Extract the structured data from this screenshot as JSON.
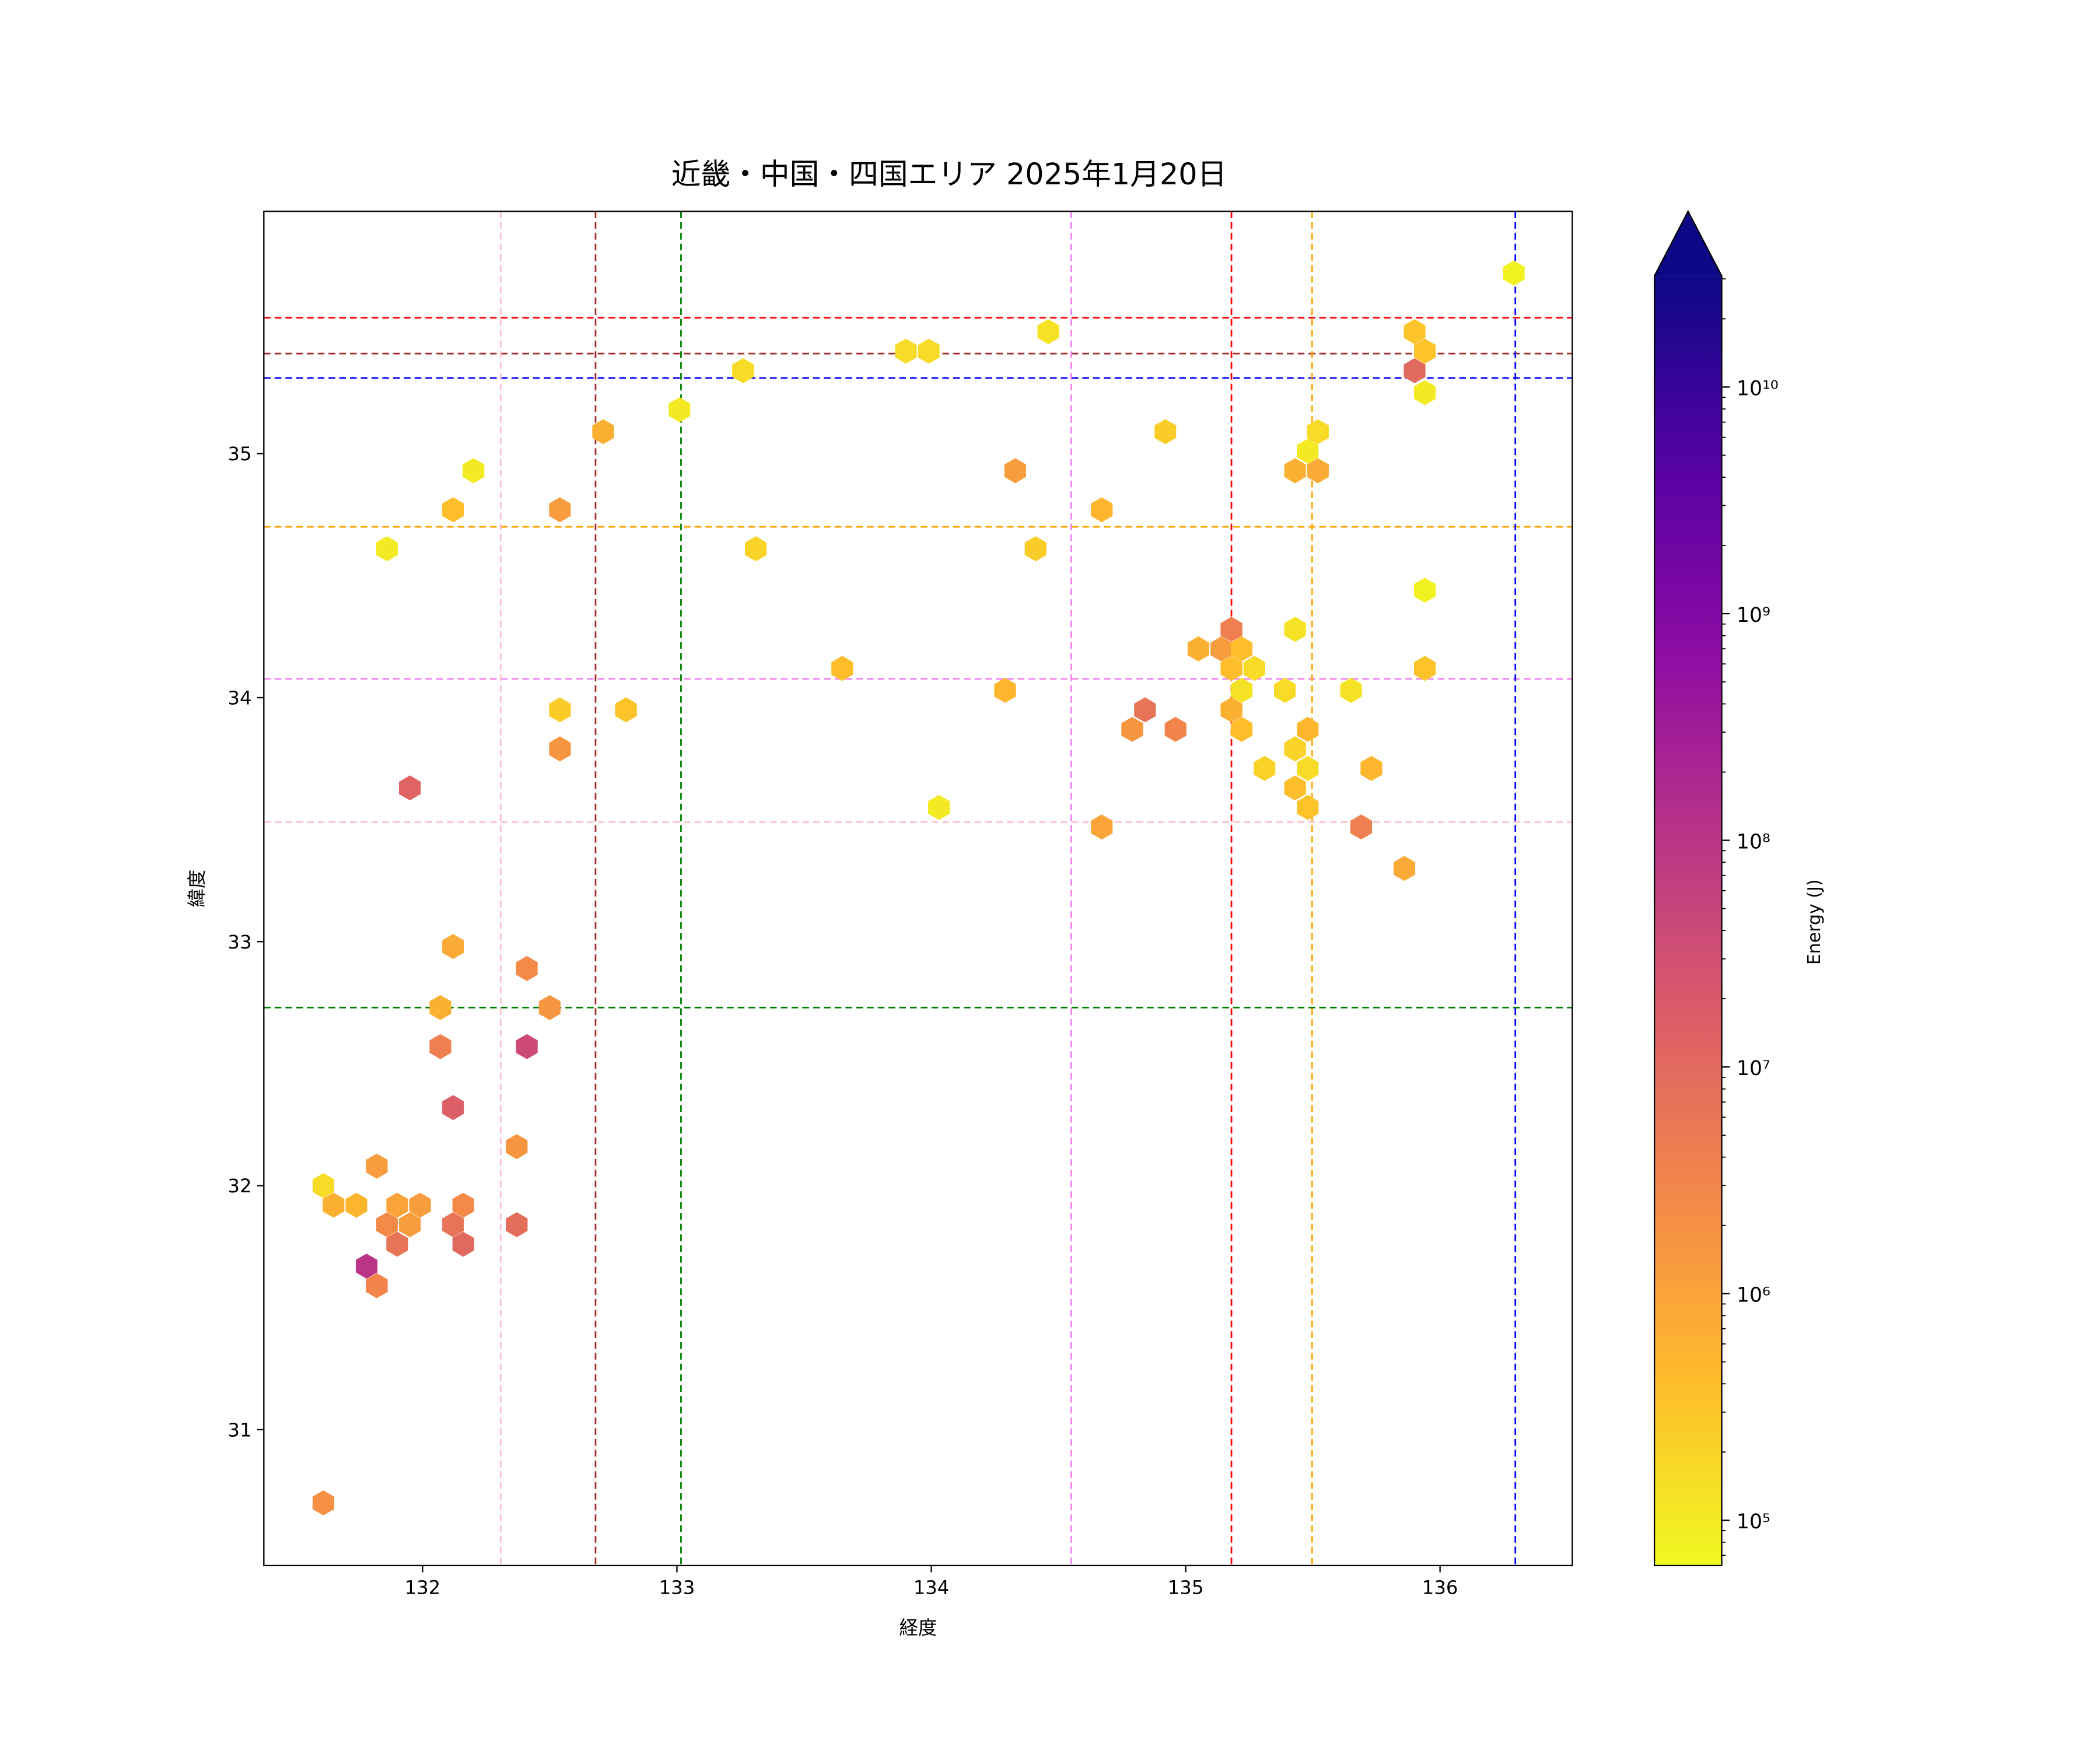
{
  "chart_data": {
    "type": "hexbin",
    "title": "近畿・中国・四国エリア 2025年1月20日",
    "xlabel": "経度",
    "ylabel": "緯度",
    "xlim": [
      131.376,
      136.52
    ],
    "ylim": [
      30.443,
      35.993
    ],
    "xticks": [
      132,
      133,
      134,
      135,
      136
    ],
    "xtick_labels": [
      "132",
      "133",
      "134",
      "135",
      "136"
    ],
    "yticks": [
      31,
      32,
      33,
      34,
      35
    ],
    "ytick_labels": [
      "31",
      "32",
      "33",
      "34",
      "35"
    ],
    "colorbar": {
      "label": "Energy (J)",
      "colormap": "plasma_r",
      "log10_range": [
        4.8,
        10.49
      ],
      "extend": "max",
      "ticks_log10": [
        5,
        6,
        7,
        8,
        9,
        10
      ],
      "tick_labels": [
        "10⁵",
        "10⁶",
        "10⁷",
        "10⁸",
        "10⁹",
        "10¹⁰"
      ]
    },
    "hlines": [
      {
        "value": 35.557,
        "color": "#ff0000"
      },
      {
        "value": 35.41,
        "color": "#a52a2a"
      },
      {
        "value": 35.31,
        "color": "#0000ff"
      },
      {
        "value": 34.7,
        "color": "#ffa500"
      },
      {
        "value": 34.077,
        "color": "#ee82ee"
      },
      {
        "value": 33.49,
        "color": "#ffc0cb"
      },
      {
        "value": 32.73,
        "color": "#008000"
      }
    ],
    "vlines": [
      {
        "value": 132.307,
        "color": "#ffc0cb"
      },
      {
        "value": 132.68,
        "color": "#a52a2a"
      },
      {
        "value": 133.016,
        "color": "#008000"
      },
      {
        "value": 134.55,
        "color": "#ee82ee"
      },
      {
        "value": 135.18,
        "color": "#ff0000"
      },
      {
        "value": 135.497,
        "color": "#ffa500"
      },
      {
        "value": 136.296,
        "color": "#0000ff"
      }
    ],
    "points_fields": [
      "lon",
      "lat",
      "log10_energy"
    ],
    "points": [
      [
        136.29,
        35.74,
        4.9
      ],
      [
        135.9,
        35.5,
        5.5
      ],
      [
        135.94,
        35.42,
        5.5
      ],
      [
        135.9,
        35.34,
        7.0
      ],
      [
        135.94,
        35.25,
        5.0
      ],
      [
        134.46,
        35.5,
        5.1
      ],
      [
        133.9,
        35.42,
        5.2
      ],
      [
        133.99,
        35.42,
        5.2
      ],
      [
        133.26,
        35.34,
        5.2
      ],
      [
        133.01,
        35.18,
        5.0
      ],
      [
        132.71,
        35.09,
        5.8
      ],
      [
        132.2,
        34.93,
        5.0
      ],
      [
        132.12,
        34.77,
        5.6
      ],
      [
        132.54,
        34.77,
        6.1
      ],
      [
        131.86,
        34.61,
        5.0
      ],
      [
        133.31,
        34.61,
        5.3
      ],
      [
        134.33,
        34.93,
        6.1
      ],
      [
        134.67,
        34.77,
        5.7
      ],
      [
        134.41,
        34.61,
        5.4
      ],
      [
        134.92,
        35.09,
        5.4
      ],
      [
        135.52,
        35.09,
        5.2
      ],
      [
        135.48,
        35.01,
        5.0
      ],
      [
        135.43,
        34.93,
        5.8
      ],
      [
        135.52,
        34.93,
        5.9
      ],
      [
        135.94,
        34.44,
        4.9
      ],
      [
        135.94,
        34.12,
        5.5
      ],
      [
        135.43,
        34.28,
        5.1
      ],
      [
        133.65,
        34.12,
        5.6
      ],
      [
        134.29,
        34.03,
        5.7
      ],
      [
        135.05,
        34.2,
        5.8
      ],
      [
        135.14,
        34.2,
        6.1
      ],
      [
        135.18,
        34.28,
        6.6
      ],
      [
        135.22,
        34.2,
        5.6
      ],
      [
        135.18,
        34.12,
        5.6
      ],
      [
        135.27,
        34.12,
        5.2
      ],
      [
        135.22,
        34.03,
        5.1
      ],
      [
        135.39,
        34.03,
        5.2
      ],
      [
        135.65,
        34.03,
        5.1
      ],
      [
        135.18,
        33.95,
        5.8
      ],
      [
        135.22,
        33.87,
        5.6
      ],
      [
        134.84,
        33.95,
        6.8
      ],
      [
        134.79,
        33.87,
        6.2
      ],
      [
        134.96,
        33.87,
        6.5
      ],
      [
        135.48,
        33.87,
        5.7
      ],
      [
        135.43,
        33.79,
        5.3
      ],
      [
        135.31,
        33.71,
        5.3
      ],
      [
        135.48,
        33.71,
        5.2
      ],
      [
        135.73,
        33.71,
        5.7
      ],
      [
        135.43,
        33.63,
        5.6
      ],
      [
        135.48,
        33.55,
        5.5
      ],
      [
        134.03,
        33.55,
        5.0
      ],
      [
        134.67,
        33.47,
        6.0
      ],
      [
        135.69,
        33.47,
        6.6
      ],
      [
        135.86,
        33.3,
        5.9
      ],
      [
        132.54,
        33.95,
        5.4
      ],
      [
        132.8,
        33.95,
        5.5
      ],
      [
        132.54,
        33.79,
        6.2
      ],
      [
        131.95,
        33.63,
        7.1
      ],
      [
        132.12,
        32.98,
        5.9
      ],
      [
        132.41,
        32.89,
        6.4
      ],
      [
        132.07,
        32.73,
        5.8
      ],
      [
        132.5,
        32.73,
        6.2
      ],
      [
        132.07,
        32.57,
        6.6
      ],
      [
        132.41,
        32.57,
        7.6
      ],
      [
        132.12,
        32.32,
        7.2
      ],
      [
        132.37,
        32.16,
        6.2
      ],
      [
        131.61,
        32.0,
        5.2
      ],
      [
        131.82,
        32.08,
        6.1
      ],
      [
        131.65,
        31.92,
        5.8
      ],
      [
        131.74,
        31.92,
        5.7
      ],
      [
        131.9,
        31.92,
        6.0
      ],
      [
        131.99,
        31.92,
        6.1
      ],
      [
        132.16,
        31.92,
        6.4
      ],
      [
        131.86,
        31.84,
        6.4
      ],
      [
        131.95,
        31.84,
        6.1
      ],
      [
        132.12,
        31.84,
        6.8
      ],
      [
        132.37,
        31.84,
        6.9
      ],
      [
        131.9,
        31.76,
        6.8
      ],
      [
        132.16,
        31.76,
        7.0
      ],
      [
        131.78,
        31.67,
        8.0
      ],
      [
        131.82,
        31.59,
        6.5
      ],
      [
        131.61,
        30.7,
        6.3
      ]
    ]
  }
}
